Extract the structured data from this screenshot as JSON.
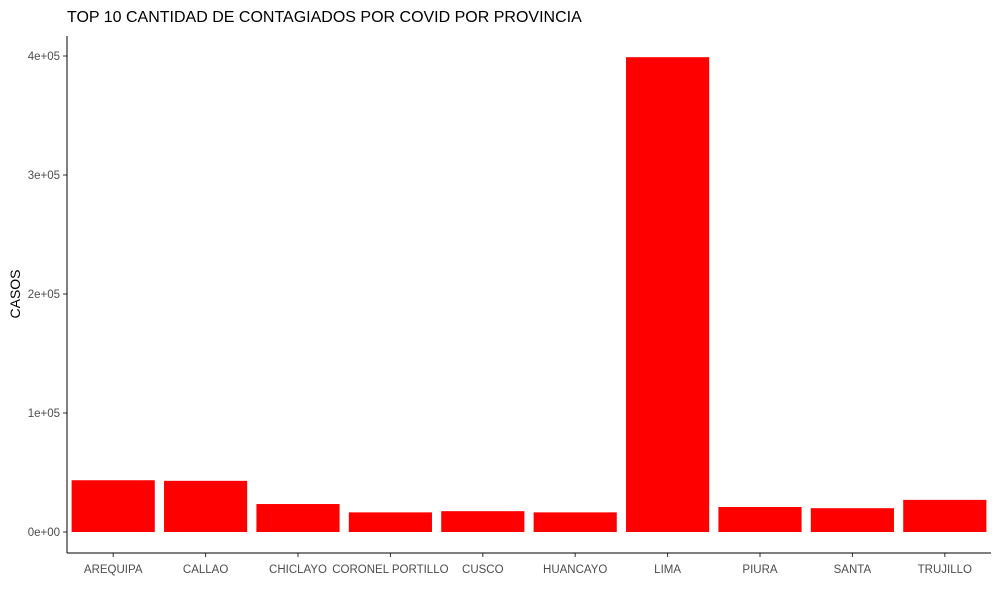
{
  "chart_data": {
    "type": "bar",
    "title": "TOP 10 CANTIDAD DE CONTAGIADOS POR COVID POR PROVINCIA",
    "xlabel": "",
    "ylabel": "CASOS",
    "categories": [
      "AREQUIPA",
      "CALLAO",
      "CHICLAYO",
      "CORONEL PORTILLO",
      "CUSCO",
      "HUANCAYO",
      "LIMA",
      "PIURA",
      "SANTA",
      "TRUJILLO"
    ],
    "values": [
      43500,
      43000,
      23500,
      16500,
      17500,
      16500,
      399000,
      21000,
      20000,
      27000
    ],
    "ylim": [
      0,
      400000
    ],
    "yticks": [
      0,
      100000,
      200000,
      300000,
      400000
    ],
    "ytick_labels": [
      "0e+00",
      "1e+05",
      "2e+05",
      "3e+05",
      "4e+05"
    ],
    "bar_color": "#ff0000",
    "grid": false,
    "legend": "none"
  }
}
